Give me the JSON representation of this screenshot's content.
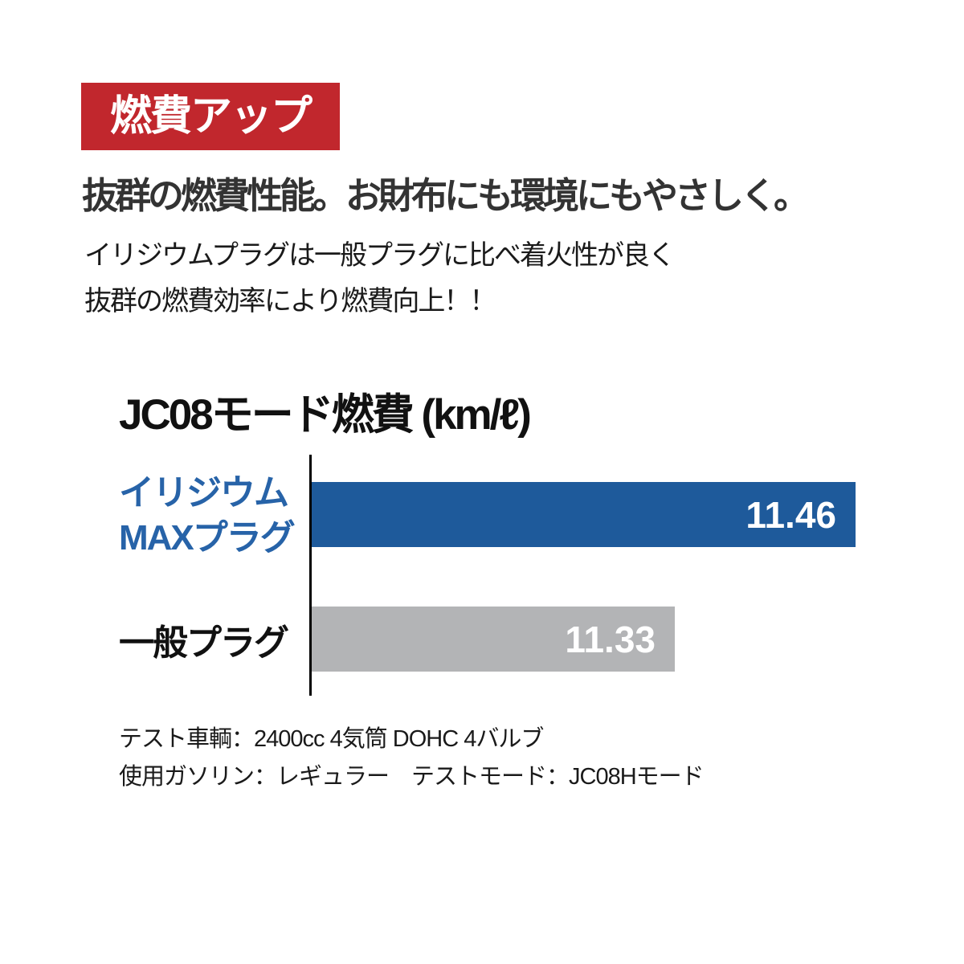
{
  "page": {
    "background_color": "#ffffff"
  },
  "badge": {
    "label": "燃費アップ",
    "bg_color": "#c1272d",
    "text_color": "#ffffff"
  },
  "headline": "抜群の燃費性能。お財布にも環境にもやさしく。",
  "body_lines": [
    "イリジウムプラグは一般プラグに比べ着火性が良く",
    "抜群の燃費効率により燃費向上！！"
  ],
  "chart_data": {
    "type": "bar",
    "orientation": "horizontal",
    "title": "JC08モード燃費 (km/ℓ)",
    "unit": "km/ℓ",
    "categories": [
      "イリジウムMAXプラグ",
      "一般プラグ"
    ],
    "values": [
      11.46,
      11.33
    ],
    "value_labels": [
      "11.46",
      "11.33"
    ],
    "bar_colors": [
      "#1e5a9b",
      "#b3b4b6"
    ],
    "value_text_color": "#ffffff",
    "xlim": [
      11.07,
      11.48
    ],
    "grid": false,
    "legend": "none",
    "axis_color": "#000000"
  },
  "chart_labels": {
    "bar1_line1": "イリジウム",
    "bar1_line2": "MAXプラグ",
    "bar1_color": "#2763a8",
    "bar2": "一般プラグ"
  },
  "footnotes": [
    "テスト車輌：2400cc 4気筒 DOHC 4バルブ",
    "使用ガソリン：レギュラー　テストモード：JC08Hモード"
  ]
}
